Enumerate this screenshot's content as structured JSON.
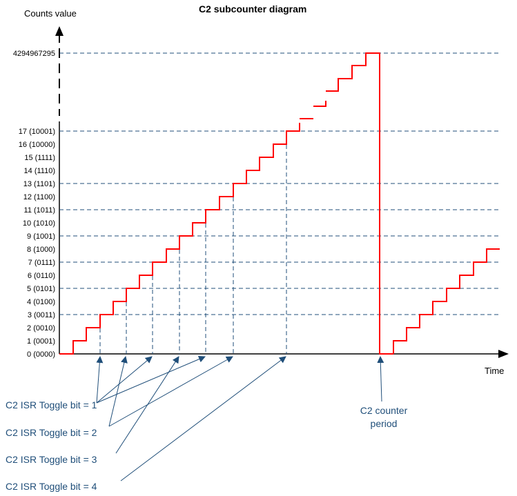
{
  "title": "C2 subcounter diagram",
  "y_axis_label": "Counts value",
  "x_axis_label": "Time",
  "max_value_label": "4294967295",
  "y_tick_labels": [
    "0 (0000)",
    "1 (0001)",
    "2 (0010)",
    "3 (0011)",
    "4 (0100)",
    "5 (0101)",
    "6 (0110)",
    "7 (0111)",
    "8 (1000)",
    "9 (1001)",
    "10 (1010)",
    "11 (1011)",
    "12 (1100)",
    "13 (1101)",
    "14 (1110)",
    "15 (1111)",
    "16 (10000)",
    "17 (10001)"
  ],
  "annotations": {
    "toggle_1": "C2 ISR Toggle bit = 1",
    "toggle_2": "C2 ISR Toggle bit = 2",
    "toggle_3": "C2 ISR Toggle bit = 3",
    "toggle_4": "C2 ISR Toggle bit = 4",
    "period_line1": "C2 counter",
    "period_line2": "period"
  },
  "colors": {
    "counter": "#FF0000",
    "guide_lines": "#1F4E79",
    "annotation_text": "#1F4E79",
    "axis": "#000000"
  }
}
